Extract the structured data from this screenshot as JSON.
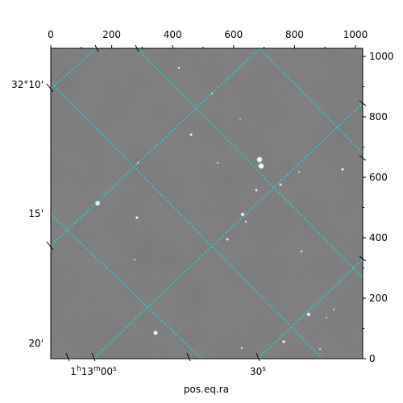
{
  "figure": {
    "xlabel": "pos.eq.ra"
  },
  "pixel_axes": {
    "x_ticks": [
      "0",
      "200",
      "400",
      "600",
      "800",
      "1000"
    ],
    "y_ticks": [
      "0",
      "200",
      "400",
      "600",
      "800",
      "1000"
    ]
  },
  "world_axes": {
    "ra_ticks": [
      "1h13m00s",
      "30s"
    ],
    "dec_ticks": [
      "32°10'",
      "15'",
      "20'"
    ]
  },
  "colors": {
    "image_background": "#7b7b7b",
    "grid_line": "#00e5e5",
    "star": "#ffffff",
    "frame": "#000000"
  }
}
